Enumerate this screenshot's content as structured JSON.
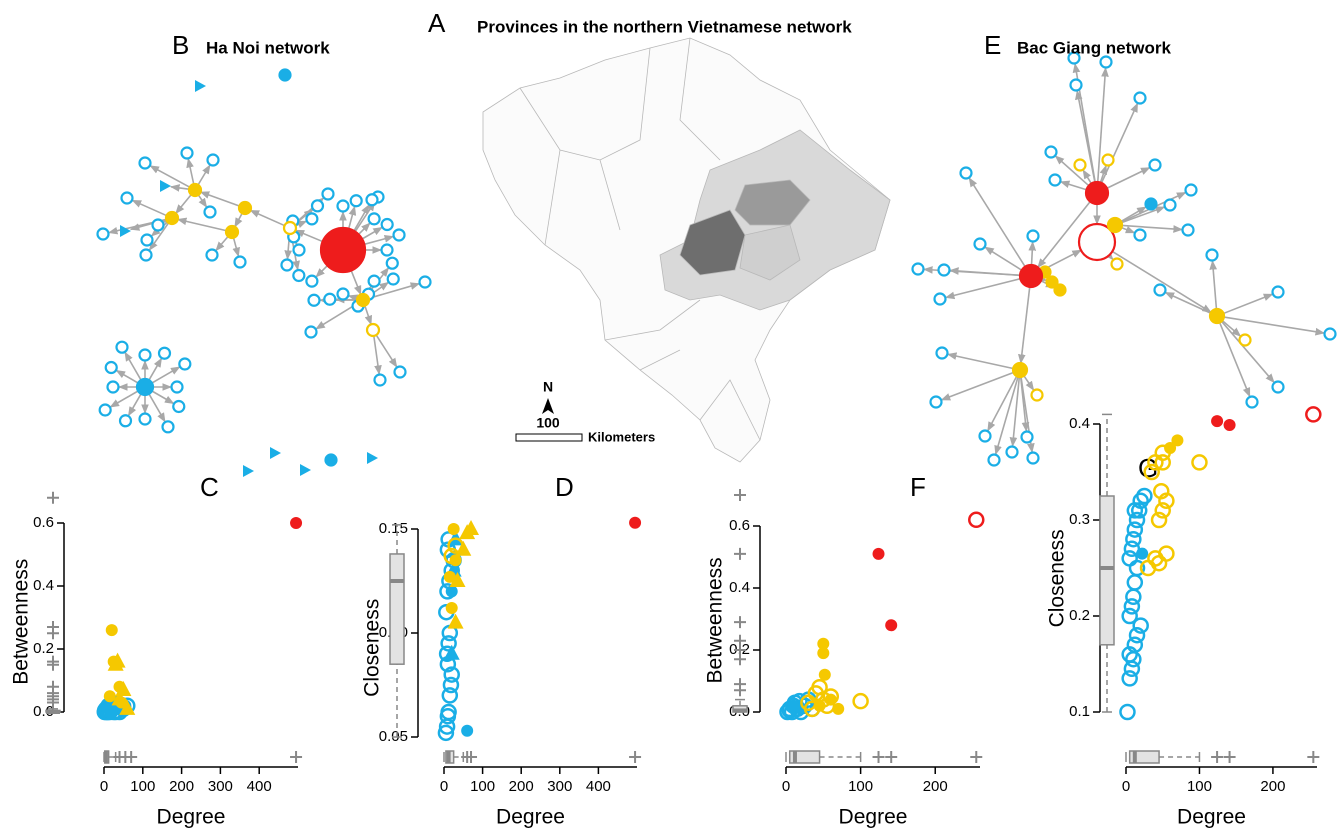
{
  "panel_a": {
    "letter": "A",
    "title": "Provinces in the northern Vietnamese network",
    "north": "N",
    "scale": "100",
    "scale_unit": "Kilometers"
  },
  "panel_b": {
    "letter": "B",
    "title": "Ha Noi network"
  },
  "panel_e": {
    "letter": "E",
    "title": "Bac Giang network"
  },
  "chart_data": [
    {
      "type": "scatter",
      "panel": "C",
      "xlabel": "Degree",
      "ylabel": "Betweenness",
      "xlim": [
        0,
        500
      ],
      "ylim": [
        0,
        0.7
      ],
      "xticks": [
        0,
        100,
        200,
        300,
        400
      ],
      "yticks": [
        {
          "value": 0,
          "label": "0.0"
        },
        0.2,
        0.4,
        0.6
      ],
      "series": [
        {
          "color": "#1aaee6",
          "marker": "circle",
          "filled": false,
          "x": [
            2,
            5,
            8,
            10,
            12,
            15,
            18,
            20,
            25,
            30,
            3,
            6,
            9,
            14,
            22,
            40,
            50,
            60
          ],
          "y": [
            0,
            0,
            0.01,
            0,
            0.02,
            0,
            0.01,
            0.03,
            0,
            0,
            0.005,
            0.01,
            0,
            0.02,
            0.01,
            0,
            0.01,
            0.02
          ]
        },
        {
          "color": "#1aaee6",
          "marker": "circle",
          "filled": true,
          "x": [
            10,
            30,
            55
          ],
          "y": [
            0.01,
            0.02,
            0.02
          ]
        },
        {
          "color": "#1aaee6",
          "marker": "triangle",
          "filled": true,
          "x": [
            20,
            35,
            45
          ],
          "y": [
            0.02,
            0.03,
            0.01
          ]
        },
        {
          "color": "#f5c800",
          "marker": "circle",
          "filled": true,
          "x": [
            20,
            25,
            40,
            45,
            15
          ],
          "y": [
            0.26,
            0.16,
            0.08,
            0.03,
            0.05
          ]
        },
        {
          "color": "#f5c800",
          "marker": "triangle",
          "filled": true,
          "x": [
            30,
            35,
            50,
            60,
            40
          ],
          "y": [
            0.15,
            0.16,
            0.07,
            0.01,
            0.04
          ]
        },
        {
          "color": "#ee1c1c",
          "marker": "circle",
          "filled": true,
          "x": [
            495
          ],
          "y": [
            0.6
          ]
        }
      ],
      "x_box": {
        "min": 0,
        "q1": 2,
        "median": 5,
        "q3": 12,
        "max": 30,
        "outliers": [
          40,
          55,
          70,
          495
        ]
      },
      "y_box": {
        "min": 0,
        "q1": 0,
        "median": 0,
        "q3": 0.005,
        "max": 0.01,
        "outliers": [
          0.68,
          0.27,
          0.25,
          0.16,
          0.15,
          0.08,
          0.06,
          0.05,
          0.04,
          0.03
        ]
      }
    },
    {
      "type": "scatter",
      "panel": "D",
      "xlabel": "Degree",
      "ylabel": "Closeness",
      "xlim": [
        0,
        500
      ],
      "ylim": [
        0.05,
        0.155
      ],
      "xticks": [
        0,
        100,
        200,
        300,
        400
      ],
      "yticks": [
        0.05,
        {
          "value": 0.1,
          "label": "0.10"
        },
        0.15
      ],
      "series": [
        {
          "color": "#1aaee6",
          "marker": "circle",
          "filled": false,
          "x": [
            5,
            8,
            10,
            12,
            15,
            18,
            20,
            10,
            8,
            12,
            15,
            6,
            9,
            14,
            20,
            25,
            10,
            12
          ],
          "y": [
            0.052,
            0.055,
            0.06,
            0.062,
            0.07,
            0.075,
            0.08,
            0.085,
            0.09,
            0.095,
            0.1,
            0.11,
            0.12,
            0.125,
            0.13,
            0.135,
            0.14,
            0.145
          ]
        },
        {
          "color": "#1aaee6",
          "marker": "circle",
          "filled": true,
          "x": [
            60,
            20
          ],
          "y": [
            0.053,
            0.12
          ]
        },
        {
          "color": "#1aaee6",
          "marker": "triangle",
          "filled": true,
          "x": [
            20,
            25,
            30
          ],
          "y": [
            0.09,
            0.13,
            0.145
          ]
        },
        {
          "color": "#f5c800",
          "marker": "circle",
          "filled": true,
          "x": [
            15,
            20,
            30,
            25
          ],
          "y": [
            0.127,
            0.112,
            0.135,
            0.15
          ]
        },
        {
          "color": "#f5c800",
          "marker": "triangle",
          "filled": true,
          "x": [
            30,
            50,
            70,
            60,
            35
          ],
          "y": [
            0.105,
            0.14,
            0.15,
            0.148,
            0.125
          ]
        },
        {
          "color": "#f5c800",
          "marker": "circle",
          "filled": false,
          "x": [
            20,
            30
          ],
          "y": [
            0.137,
            0.142
          ]
        },
        {
          "color": "#ee1c1c",
          "marker": "circle",
          "filled": true,
          "x": [
            495
          ],
          "y": [
            0.153
          ]
        }
      ],
      "x_box": {
        "min": 0,
        "q1": 5,
        "median": 12,
        "q3": 25,
        "max": 50,
        "outliers": [
          60,
          70,
          495
        ]
      },
      "y_box": {
        "min": 0.05,
        "q1": 0.085,
        "median": 0.125,
        "q3": 0.138,
        "max": 0.152,
        "outliers": []
      }
    },
    {
      "type": "scatter",
      "panel": "F",
      "xlabel": "Degree",
      "ylabel": "Betweenness",
      "xlim": [
        0,
        260
      ],
      "ylim": [
        0,
        0.72
      ],
      "xticks": [
        0,
        100,
        200
      ],
      "yticks": [
        {
          "value": 0,
          "label": "0.0"
        },
        0.2,
        0.4,
        0.6
      ],
      "series": [
        {
          "color": "#1aaee6",
          "marker": "circle",
          "filled": false,
          "x": [
            2,
            5,
            8,
            10,
            12,
            15,
            20,
            25,
            30,
            35,
            5,
            18
          ],
          "y": [
            0,
            0.01,
            0,
            0.02,
            0.03,
            0.01,
            0,
            0.02,
            0.04,
            0.01,
            0.005,
            0.035
          ]
        },
        {
          "color": "#1aaee6",
          "marker": "circle",
          "filled": true,
          "x": [
            10,
            20
          ],
          "y": [
            0.02,
            0.01
          ]
        },
        {
          "color": "#f5c800",
          "marker": "circle",
          "filled": false,
          "x": [
            30,
            40,
            45,
            50,
            55,
            60,
            100,
            35
          ],
          "y": [
            0.03,
            0.06,
            0.08,
            0.04,
            0.02,
            0.05,
            0.035,
            0.01
          ]
        },
        {
          "color": "#f5c800",
          "marker": "circle",
          "filled": true,
          "x": [
            50,
            50,
            52,
            70,
            45,
            60
          ],
          "y": [
            0.22,
            0.19,
            0.12,
            0.01,
            0.02,
            0.04
          ]
        },
        {
          "color": "#ee1c1c",
          "marker": "circle",
          "filled": true,
          "x": [
            124,
            141
          ],
          "y": [
            0.51,
            0.28
          ]
        },
        {
          "color": "#ee1c1c",
          "marker": "circle",
          "filled": false,
          "x": [
            255
          ],
          "y": [
            0.62
          ]
        }
      ],
      "x_box": {
        "min": 0,
        "q1": 5,
        "median": 12,
        "q3": 45,
        "max": 100,
        "outliers": [
          124,
          141,
          255
        ]
      },
      "y_box": {
        "min": 0,
        "q1": 0,
        "median": 0.005,
        "q3": 0.02,
        "max": 0.04,
        "outliers": [
          0.7,
          0.51,
          0.29,
          0.23,
          0.2,
          0.17,
          0.09,
          0.07
        ]
      }
    },
    {
      "type": "scatter",
      "panel": "G",
      "xlabel": "Degree",
      "ylabel": "Closeness",
      "xlim": [
        0,
        260
      ],
      "ylim": [
        0.1,
        0.42
      ],
      "xticks": [
        0,
        100,
        200
      ],
      "yticks": [
        0.1,
        0.2,
        0.3,
        0.4
      ],
      "series": [
        {
          "color": "#1aaee6",
          "marker": "circle",
          "filled": false,
          "x": [
            2,
            5,
            8,
            10,
            12,
            15,
            20,
            5,
            8,
            10,
            12,
            15,
            5,
            8,
            10,
            12,
            15,
            18,
            20,
            25,
            12,
            5
          ],
          "y": [
            0.1,
            0.135,
            0.145,
            0.155,
            0.17,
            0.18,
            0.19,
            0.2,
            0.21,
            0.22,
            0.235,
            0.25,
            0.26,
            0.27,
            0.28,
            0.29,
            0.3,
            0.31,
            0.32,
            0.325,
            0.31,
            0.16
          ]
        },
        {
          "color": "#1aaee6",
          "marker": "circle",
          "filled": true,
          "x": [
            22
          ],
          "y": [
            0.265
          ]
        },
        {
          "color": "#f5c800",
          "marker": "circle",
          "filled": false,
          "x": [
            30,
            40,
            45,
            50,
            55,
            48,
            50,
            40,
            35,
            100,
            50,
            45,
            55
          ],
          "y": [
            0.25,
            0.26,
            0.3,
            0.31,
            0.32,
            0.33,
            0.36,
            0.36,
            0.35,
            0.36,
            0.37,
            0.255,
            0.265
          ]
        },
        {
          "color": "#f5c800",
          "marker": "circle",
          "filled": true,
          "x": [
            60,
            70
          ],
          "y": [
            0.375,
            0.383
          ]
        },
        {
          "color": "#ee1c1c",
          "marker": "circle",
          "filled": true,
          "x": [
            124,
            141
          ],
          "y": [
            0.403,
            0.399
          ]
        },
        {
          "color": "#ee1c1c",
          "marker": "circle",
          "filled": false,
          "x": [
            255
          ],
          "y": [
            0.41
          ]
        }
      ],
      "x_box": {
        "min": 0,
        "q1": 5,
        "median": 12,
        "q3": 45,
        "max": 100,
        "outliers": [
          124,
          141,
          255
        ]
      },
      "y_box": {
        "min": 0.1,
        "q1": 0.17,
        "median": 0.25,
        "q3": 0.325,
        "max": 0.41,
        "outliers": []
      }
    }
  ]
}
